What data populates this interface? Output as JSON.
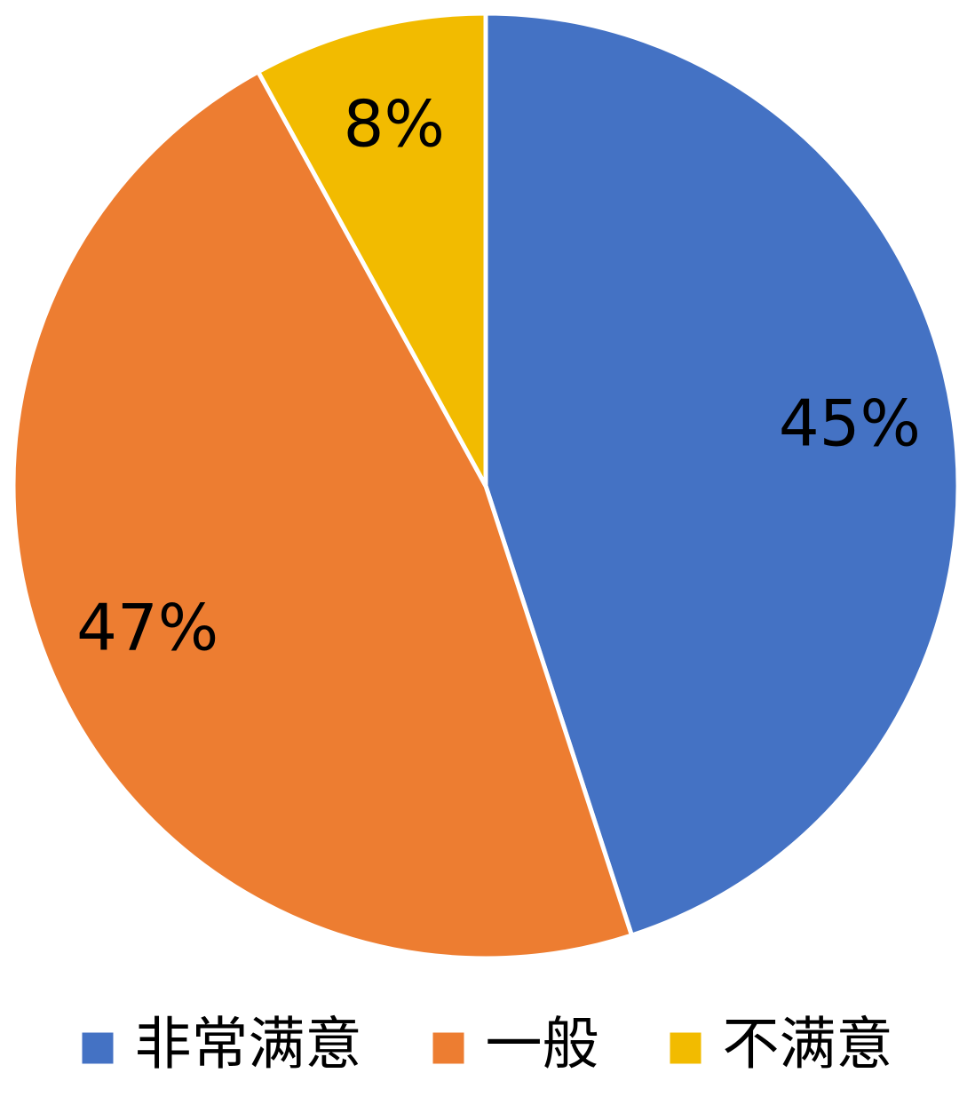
{
  "chart_data": {
    "type": "pie",
    "categories": [
      "非常满意",
      "一般",
      "不满意"
    ],
    "values": [
      45,
      47,
      8
    ],
    "value_labels": [
      "45%",
      "47%",
      "8%"
    ],
    "colors": [
      "#4472c4",
      "#ed7d31",
      "#f2bb00"
    ],
    "legend": "bottom"
  }
}
